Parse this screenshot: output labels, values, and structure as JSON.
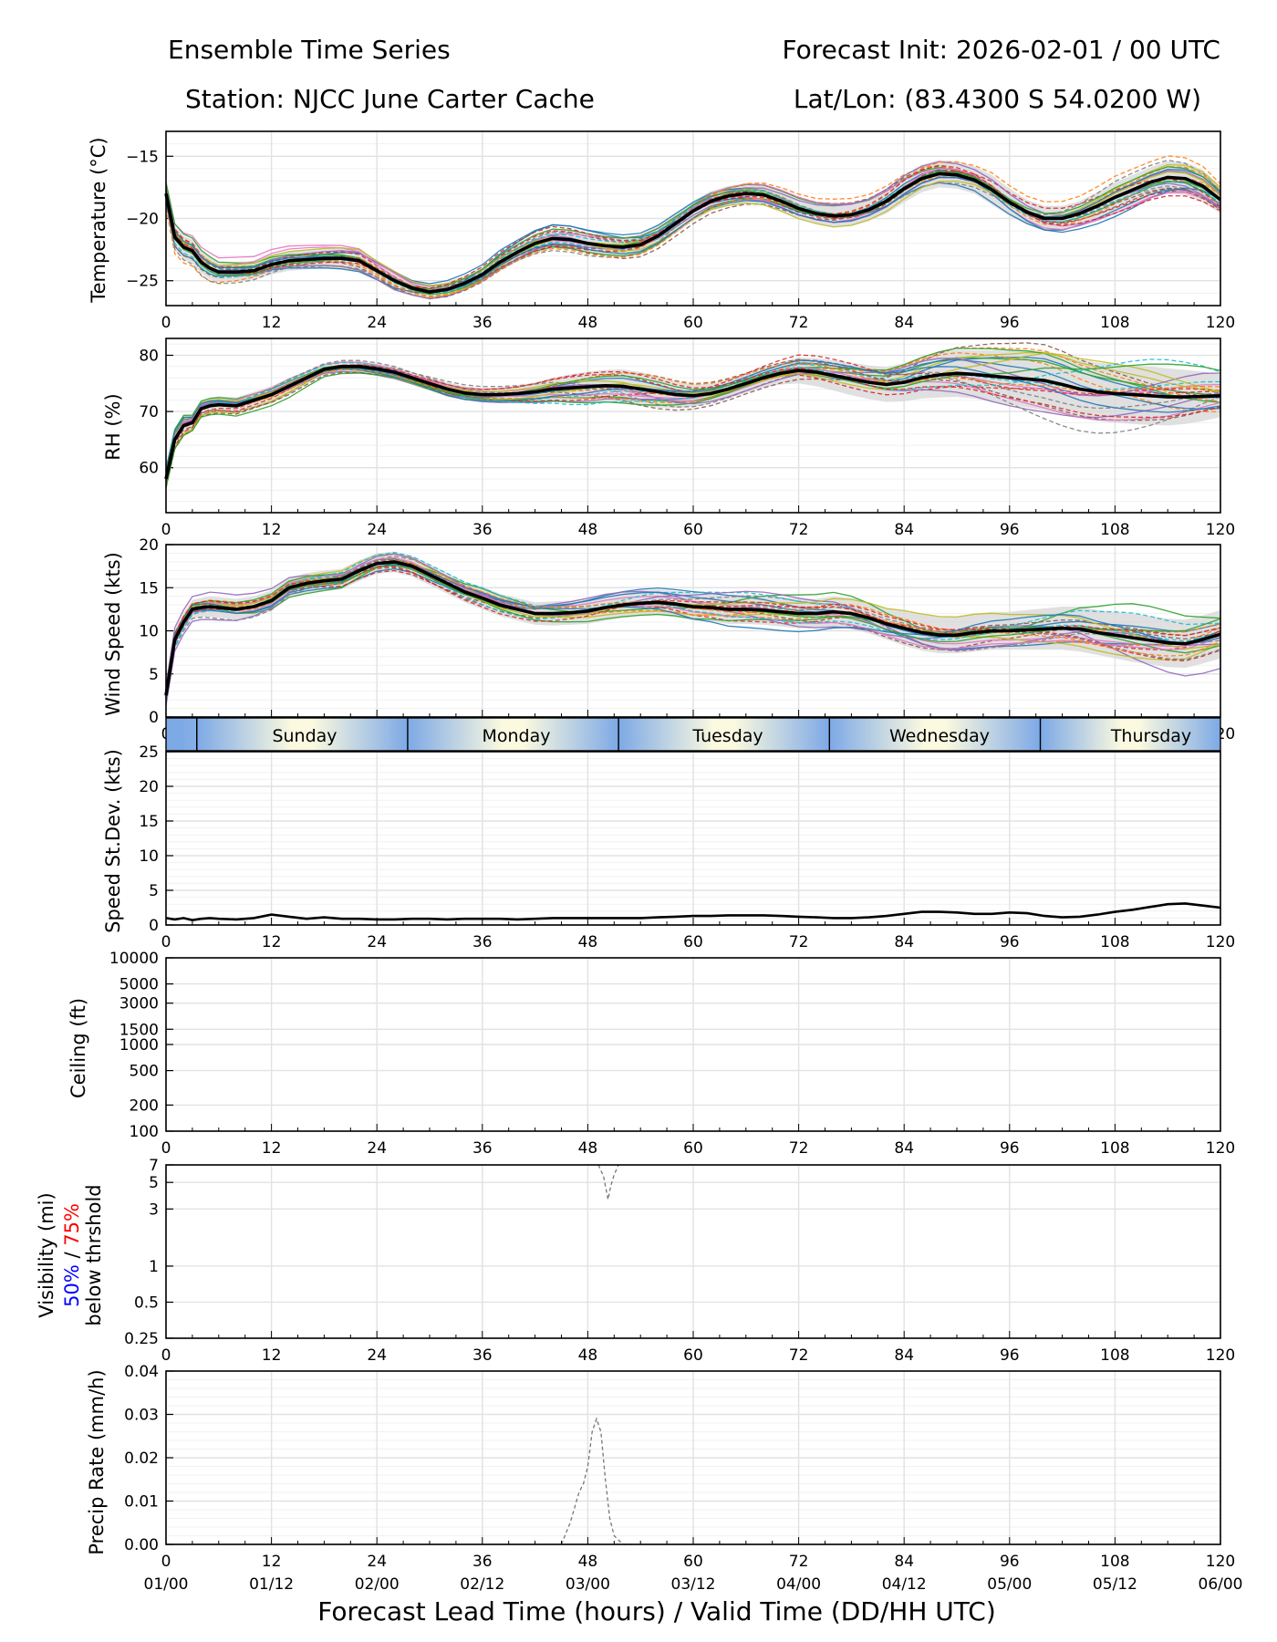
{
  "header": {
    "title": "Ensemble Time Series",
    "init": "Forecast Init: 2026-02-01 / 00 UTC",
    "station": "Station: NJCC June Carter Cache",
    "latlon": "Lat/Lon: (83.4300 S 54.0200 W)"
  },
  "xlabel": "Forecast Lead Time (hours) / Valid Time (DD/HH UTC)",
  "x_ticks": [
    0,
    12,
    24,
    36,
    48,
    60,
    72,
    84,
    96,
    108,
    120
  ],
  "valid_labels": [
    "01/00",
    "01/12",
    "02/00",
    "02/12",
    "03/00",
    "03/12",
    "04/00",
    "04/12",
    "05/00",
    "05/12",
    "06/00"
  ],
  "day_bar": {
    "days": [
      "Sunday",
      "Monday",
      "Tuesday",
      "Wednesday",
      "Thursday"
    ],
    "day_start_hours": [
      3.5,
      27.5,
      51.5,
      75.5,
      99.5
    ]
  },
  "visibility_legend": {
    "line1": "Visibility (mi)",
    "pct50": "50%",
    "sep": " / ",
    "pct75": "75%",
    "line3": "below thrshold"
  },
  "colors": {
    "mean": "#000000",
    "spread": "#d8d8d8",
    "grid": "#e2e2e2",
    "p50": "#0000ff",
    "p75": "#ff0000",
    "day_edge": "#7da9e6",
    "day_mid": "#fbf9e0"
  },
  "chart_data": [
    {
      "id": "temperature",
      "type": "line",
      "ylabel": "Temperature (°C)",
      "ylim": [
        -27,
        -13
      ],
      "yticks": [
        -15,
        -20,
        -25
      ],
      "ytick_labels": [
        "−15",
        "−20",
        "−25"
      ],
      "x": [
        0,
        1,
        2,
        3,
        4,
        5,
        6,
        8,
        10,
        12,
        14,
        16,
        18,
        20,
        22,
        24,
        26,
        28,
        30,
        32,
        34,
        36,
        38,
        40,
        42,
        44,
        46,
        48,
        50,
        52,
        54,
        56,
        58,
        60,
        62,
        64,
        66,
        68,
        70,
        72,
        74,
        76,
        78,
        80,
        82,
        84,
        86,
        88,
        90,
        92,
        94,
        96,
        98,
        100,
        102,
        104,
        106,
        108,
        110,
        112,
        114,
        116,
        118,
        120
      ],
      "mean": [
        -18.0,
        -21.5,
        -22.3,
        -22.6,
        -23.5,
        -24.0,
        -24.3,
        -24.3,
        -24.2,
        -23.7,
        -23.4,
        -23.3,
        -23.2,
        -23.2,
        -23.4,
        -24.2,
        -25.0,
        -25.6,
        -25.9,
        -25.7,
        -25.2,
        -24.5,
        -23.5,
        -22.7,
        -22.0,
        -21.6,
        -21.7,
        -22.0,
        -22.2,
        -22.3,
        -22.1,
        -21.4,
        -20.4,
        -19.4,
        -18.6,
        -18.2,
        -18.0,
        -18.1,
        -18.6,
        -19.2,
        -19.6,
        -19.8,
        -19.7,
        -19.3,
        -18.6,
        -17.6,
        -16.8,
        -16.4,
        -16.5,
        -16.9,
        -17.7,
        -18.7,
        -19.5,
        -20.0,
        -20.0,
        -19.6,
        -19.0,
        -18.3,
        -17.7,
        -17.1,
        -16.7,
        -16.8,
        -17.4,
        -18.5
      ],
      "spread_low": [
        -18.8,
        -22.5,
        -23.3,
        -23.6,
        -24.4,
        -24.9,
        -25.1,
        -25.1,
        -24.9,
        -24.5,
        -24.2,
        -24.1,
        -24.0,
        -24.1,
        -24.3,
        -25.0,
        -25.8,
        -26.2,
        -26.5,
        -26.3,
        -25.8,
        -25.1,
        -24.2,
        -23.4,
        -22.8,
        -22.4,
        -22.5,
        -22.8,
        -23.0,
        -23.1,
        -22.9,
        -22.2,
        -21.2,
        -20.2,
        -19.4,
        -19.0,
        -18.8,
        -18.9,
        -19.4,
        -20.0,
        -20.4,
        -20.7,
        -20.6,
        -20.2,
        -19.6,
        -18.7,
        -17.9,
        -17.5,
        -17.6,
        -18.0,
        -18.9,
        -19.8,
        -20.5,
        -21.0,
        -21.0,
        -20.6,
        -20.1,
        -19.5,
        -18.9,
        -18.3,
        -18.0,
        -18.1,
        -18.7,
        -19.6
      ],
      "spread_high": [
        -17.2,
        -20.6,
        -21.4,
        -21.7,
        -22.6,
        -23.1,
        -23.5,
        -23.5,
        -23.4,
        -22.9,
        -22.6,
        -22.5,
        -22.4,
        -22.4,
        -22.5,
        -23.4,
        -24.2,
        -25.0,
        -25.3,
        -25.1,
        -24.6,
        -23.9,
        -22.8,
        -22.0,
        -21.3,
        -20.8,
        -20.9,
        -21.2,
        -21.4,
        -21.5,
        -21.3,
        -20.6,
        -19.6,
        -18.6,
        -17.8,
        -17.4,
        -17.2,
        -17.3,
        -17.8,
        -18.4,
        -18.8,
        -18.9,
        -18.8,
        -18.4,
        -17.6,
        -16.5,
        -15.7,
        -15.3,
        -15.4,
        -15.8,
        -16.5,
        -17.6,
        -18.5,
        -19.0,
        -19.0,
        -18.6,
        -17.9,
        -17.1,
        -16.5,
        -15.9,
        -15.4,
        -15.5,
        -16.1,
        -17.4
      ]
    },
    {
      "id": "rh",
      "type": "line",
      "ylabel": "RH (%)",
      "ylim": [
        52,
        83
      ],
      "yticks": [
        60,
        70,
        80
      ],
      "ytick_labels": [
        "60",
        "70",
        "80"
      ],
      "x": [
        0,
        1,
        2,
        3,
        4,
        5,
        6,
        8,
        10,
        12,
        14,
        16,
        18,
        20,
        22,
        24,
        26,
        28,
        30,
        32,
        34,
        36,
        38,
        40,
        42,
        44,
        46,
        48,
        50,
        52,
        54,
        56,
        58,
        60,
        62,
        64,
        66,
        68,
        70,
        72,
        74,
        76,
        78,
        80,
        82,
        84,
        86,
        88,
        90,
        92,
        94,
        96,
        98,
        100,
        102,
        104,
        106,
        108,
        110,
        112,
        114,
        116,
        118,
        120
      ],
      "mean": [
        58.0,
        65.0,
        67.5,
        68.0,
        70.5,
        71.0,
        71.2,
        71.0,
        72.0,
        73.0,
        74.5,
        76.0,
        77.5,
        78.0,
        78.0,
        77.6,
        77.0,
        76.0,
        75.0,
        74.0,
        73.3,
        73.0,
        73.0,
        73.2,
        73.5,
        74.0,
        74.2,
        74.4,
        74.6,
        74.5,
        74.0,
        73.5,
        73.0,
        72.8,
        73.2,
        74.0,
        75.0,
        76.0,
        76.8,
        77.3,
        77.0,
        76.4,
        75.8,
        75.2,
        74.8,
        75.2,
        76.0,
        76.5,
        76.8,
        76.6,
        76.3,
        76.0,
        75.8,
        75.5,
        74.8,
        74.0,
        73.5,
        73.2,
        73.0,
        72.8,
        72.6,
        72.6,
        72.7,
        72.8
      ],
      "spread_low": [
        56.0,
        63.0,
        65.5,
        66.5,
        69.0,
        69.5,
        69.7,
        69.5,
        70.5,
        71.5,
        73.0,
        74.8,
        76.5,
        77.0,
        77.0,
        76.6,
        76.0,
        75.0,
        73.9,
        72.8,
        72.1,
        71.8,
        71.7,
        71.8,
        71.8,
        72.0,
        71.8,
        71.7,
        71.8,
        71.5,
        71.0,
        70.7,
        70.6,
        70.8,
        71.4,
        72.3,
        73.3,
        74.2,
        74.8,
        75.0,
        74.5,
        73.7,
        72.9,
        72.2,
        71.7,
        71.8,
        72.3,
        72.5,
        72.6,
        72.3,
        71.7,
        71.2,
        70.7,
        70.2,
        69.5,
        68.8,
        68.3,
        68.0,
        67.8,
        67.6,
        67.5,
        67.8,
        68.3,
        69.0
      ],
      "spread_high": [
        60.0,
        67.0,
        69.5,
        69.5,
        72.0,
        72.5,
        72.7,
        72.5,
        73.5,
        74.5,
        76.0,
        77.2,
        78.5,
        79.0,
        79.0,
        78.6,
        78.0,
        77.0,
        76.1,
        75.2,
        74.5,
        74.2,
        74.3,
        74.6,
        75.2,
        76.0,
        76.6,
        77.1,
        77.4,
        77.5,
        77.0,
        76.3,
        75.4,
        74.8,
        75.0,
        75.7,
        76.7,
        77.8,
        78.8,
        79.6,
        79.5,
        79.1,
        78.7,
        78.2,
        77.9,
        78.6,
        79.7,
        80.5,
        81.0,
        80.9,
        80.9,
        80.8,
        80.9,
        80.8,
        80.1,
        79.2,
        78.7,
        78.4,
        78.2,
        78.0,
        77.7,
        77.4,
        77.1,
        76.6
      ]
    },
    {
      "id": "wind",
      "type": "line",
      "ylabel": "Wind Speed (kts)",
      "ylim": [
        0,
        20
      ],
      "yticks": [
        0,
        5,
        10,
        15,
        20
      ],
      "ytick_labels": [
        "0",
        "5",
        "10",
        "15",
        "20"
      ],
      "x": [
        0,
        1,
        2,
        3,
        4,
        5,
        6,
        8,
        10,
        12,
        14,
        16,
        18,
        20,
        22,
        24,
        26,
        28,
        30,
        32,
        34,
        36,
        38,
        40,
        42,
        44,
        46,
        48,
        50,
        52,
        54,
        56,
        58,
        60,
        62,
        64,
        66,
        68,
        70,
        72,
        74,
        76,
        78,
        80,
        82,
        84,
        86,
        88,
        90,
        92,
        94,
        96,
        98,
        100,
        102,
        104,
        106,
        108,
        110,
        112,
        114,
        116,
        118,
        120
      ],
      "mean": [
        2.5,
        9.0,
        11.0,
        12.5,
        12.7,
        12.8,
        12.7,
        12.5,
        12.8,
        13.5,
        15.0,
        15.5,
        15.8,
        16.0,
        17.0,
        17.8,
        18.0,
        17.5,
        16.5,
        15.5,
        14.5,
        13.8,
        13.0,
        12.5,
        12.0,
        12.0,
        12.1,
        12.3,
        12.7,
        13.0,
        13.2,
        13.3,
        13.1,
        12.8,
        12.7,
        12.5,
        12.5,
        12.4,
        12.2,
        12.0,
        12.0,
        12.2,
        12.0,
        11.5,
        10.8,
        10.3,
        9.8,
        9.5,
        9.5,
        9.8,
        10.0,
        10.0,
        10.1,
        10.2,
        10.3,
        10.2,
        9.8,
        9.5,
        9.2,
        8.9,
        8.6,
        8.5,
        9.0,
        9.6
      ],
      "spread_low": [
        1.5,
        7.9,
        9.9,
        11.4,
        11.6,
        11.6,
        11.5,
        11.3,
        11.6,
        12.3,
        13.8,
        14.3,
        14.6,
        14.8,
        15.8,
        16.6,
        16.8,
        16.3,
        15.3,
        14.3,
        13.3,
        12.5,
        11.7,
        11.2,
        10.7,
        10.6,
        10.7,
        10.8,
        11.2,
        11.5,
        11.7,
        11.8,
        11.6,
        11.2,
        11.1,
        10.8,
        10.8,
        10.7,
        10.5,
        10.3,
        10.3,
        10.4,
        10.2,
        9.7,
        9.0,
        8.3,
        7.7,
        7.4,
        7.4,
        7.6,
        7.8,
        7.8,
        7.8,
        7.8,
        7.8,
        7.6,
        7.2,
        6.8,
        6.4,
        6.1,
        5.8,
        5.7,
        6.2,
        6.8
      ],
      "spread_high": [
        3.5,
        10.1,
        12.1,
        13.6,
        13.8,
        14.0,
        13.9,
        13.7,
        14.0,
        14.7,
        16.2,
        16.7,
        17.0,
        17.2,
        18.2,
        19.0,
        19.2,
        18.7,
        17.7,
        16.7,
        15.7,
        15.1,
        14.3,
        13.8,
        13.3,
        13.4,
        13.5,
        13.8,
        14.2,
        14.5,
        14.7,
        14.8,
        14.6,
        14.4,
        14.3,
        14.2,
        14.2,
        14.1,
        13.9,
        13.7,
        13.7,
        14.0,
        13.8,
        13.3,
        12.6,
        12.3,
        11.9,
        11.6,
        11.6,
        12.0,
        12.2,
        12.2,
        12.4,
        12.6,
        12.8,
        12.8,
        12.4,
        12.2,
        12.0,
        11.7,
        11.4,
        11.3,
        11.8,
        12.4
      ]
    },
    {
      "id": "speed_std",
      "type": "line",
      "ylabel": "Speed St.Dev. (kts)",
      "ylim": [
        0,
        25
      ],
      "yticks": [
        0,
        5,
        10,
        15,
        20,
        25
      ],
      "ytick_labels": [
        "0",
        "5",
        "10",
        "15",
        "20",
        "25"
      ],
      "x": [
        0,
        1,
        2,
        3,
        4,
        5,
        6,
        8,
        10,
        12,
        14,
        16,
        18,
        20,
        22,
        24,
        26,
        28,
        30,
        32,
        34,
        36,
        38,
        40,
        42,
        44,
        46,
        48,
        50,
        52,
        54,
        56,
        58,
        60,
        62,
        64,
        66,
        68,
        70,
        72,
        74,
        76,
        78,
        80,
        82,
        84,
        86,
        88,
        90,
        92,
        94,
        96,
        98,
        100,
        102,
        104,
        106,
        108,
        110,
        112,
        114,
        116,
        118,
        120
      ],
      "mean": [
        1.0,
        0.8,
        1.0,
        0.7,
        0.9,
        1.0,
        0.9,
        0.8,
        1.0,
        1.5,
        1.2,
        0.9,
        1.1,
        0.9,
        0.9,
        0.8,
        0.8,
        0.9,
        0.9,
        0.8,
        0.9,
        0.9,
        0.9,
        0.8,
        0.9,
        1.0,
        1.0,
        1.0,
        1.0,
        1.0,
        1.0,
        1.1,
        1.2,
        1.3,
        1.3,
        1.4,
        1.4,
        1.4,
        1.3,
        1.2,
        1.1,
        1.0,
        1.0,
        1.1,
        1.3,
        1.6,
        1.9,
        1.9,
        1.8,
        1.6,
        1.6,
        1.8,
        1.7,
        1.3,
        1.1,
        1.2,
        1.5,
        1.9,
        2.2,
        2.6,
        3.0,
        3.1,
        2.8,
        2.5
      ]
    },
    {
      "id": "ceiling",
      "type": "line",
      "ylabel": "Ceiling (ft)",
      "yscale": "log",
      "ylim": [
        100,
        10000
      ],
      "yticks": [
        100,
        200,
        500,
        1000,
        1500,
        3000,
        5000,
        10000
      ],
      "ytick_labels": [
        "100",
        "200",
        "500",
        "1000",
        "1500",
        "3000",
        "5000",
        "10000"
      ],
      "x": [],
      "mean": []
    },
    {
      "id": "visibility",
      "type": "line",
      "yscale": "log",
      "ylim": [
        0.25,
        7
      ],
      "yticks": [
        0.25,
        0.5,
        1,
        3,
        5,
        7
      ],
      "ytick_labels": [
        "0.25",
        "0.5",
        "1",
        "3",
        "5",
        "7"
      ],
      "member_x": [
        49.2,
        49.8,
        50.3,
        50.6,
        51.0,
        51.5
      ],
      "member_values": [
        7.0,
        5.6,
        3.6,
        4.6,
        5.8,
        7.0
      ]
    },
    {
      "id": "precip",
      "type": "line",
      "ylabel": "Precip Rate (mm/h)",
      "ylim": [
        0,
        0.04
      ],
      "yticks": [
        0,
        0.01,
        0.02,
        0.03,
        0.04
      ],
      "ytick_labels": [
        "0.00",
        "0.01",
        "0.02",
        "0.03",
        "0.04"
      ],
      "member_x": [
        45.0,
        46.0,
        47.0,
        47.5,
        48.0,
        48.5,
        49.0,
        49.5,
        50.0,
        50.5,
        51.0,
        52.0,
        53.0
      ],
      "member_values": [
        0,
        0.005,
        0.012,
        0.014,
        0.018,
        0.026,
        0.029,
        0.026,
        0.015,
        0.006,
        0.002,
        0.0,
        0.0
      ]
    }
  ]
}
